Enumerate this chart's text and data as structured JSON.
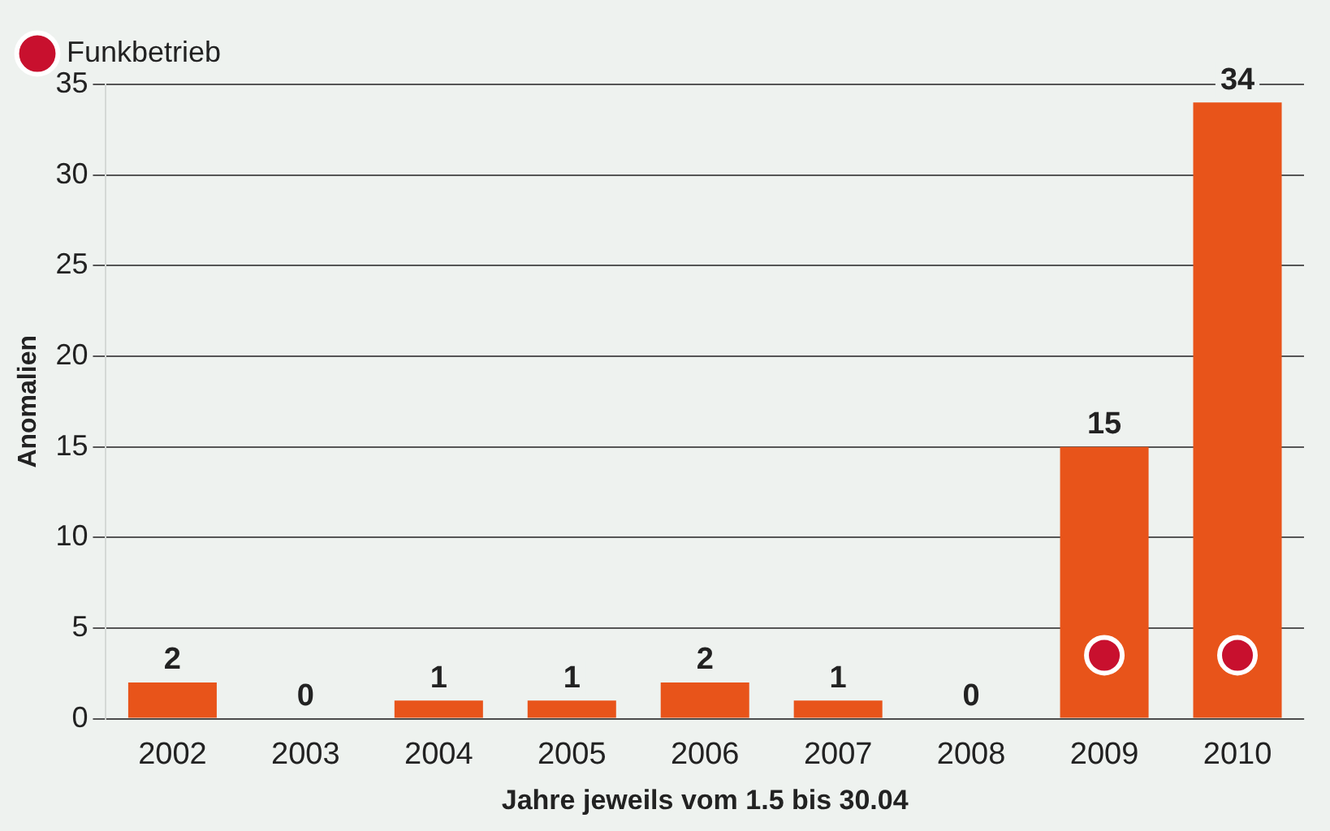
{
  "chart_data": {
    "type": "bar",
    "ylabel": "Anomalien",
    "xlabel": "Jahre jeweils vom 1.5 bis 30.04",
    "categories": [
      "2002",
      "2003",
      "2004",
      "2005",
      "2006",
      "2007",
      "2008",
      "2009",
      "2010"
    ],
    "series": [
      {
        "color": "#e8541a",
        "values": [
          2,
          0,
          1,
          1,
          2,
          1,
          0,
          15,
          34
        ],
        "value_labels": [
          "2",
          "0",
          "1",
          "1",
          "2",
          "1",
          "0",
          "15",
          "34"
        ]
      },
      {
        "type": "scatter",
        "name": "Funkbetrieb",
        "color": "#c8102e",
        "marker": "circle",
        "values": [
          null,
          null,
          null,
          null,
          null,
          null,
          null,
          3.5,
          3.5
        ]
      }
    ],
    "ylim": [
      0,
      35
    ],
    "yticks": [
      0,
      5,
      10,
      15,
      20,
      25,
      30,
      35
    ],
    "grid": "y",
    "legend": "top left"
  }
}
